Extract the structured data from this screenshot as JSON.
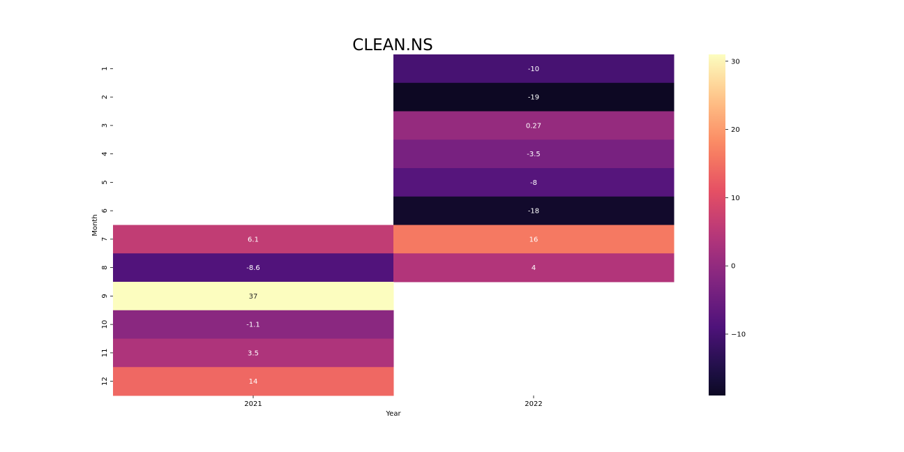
{
  "chart_data": {
    "type": "heatmap",
    "title": "CLEAN.NS",
    "xlabel": "Year",
    "ylabel": "Month",
    "x_categories": [
      "2021",
      "2022"
    ],
    "y_categories": [
      "1",
      "2",
      "3",
      "4",
      "5",
      "6",
      "7",
      "8",
      "9",
      "10",
      "11",
      "12"
    ],
    "values": [
      [
        null,
        -10
      ],
      [
        null,
        -19
      ],
      [
        null,
        0.27
      ],
      [
        null,
        -3.5
      ],
      [
        null,
        -8
      ],
      [
        null,
        -18
      ],
      [
        6.1,
        16
      ],
      [
        -8.6,
        4
      ],
      [
        37,
        null
      ],
      [
        -1.1,
        null
      ],
      [
        3.5,
        null
      ],
      [
        14,
        null
      ]
    ],
    "cell_labels": [
      [
        null,
        "-10"
      ],
      [
        null,
        "-19"
      ],
      [
        null,
        "0.27"
      ],
      [
        null,
        "-3.5"
      ],
      [
        null,
        "-8"
      ],
      [
        null,
        "-18"
      ],
      [
        "6.1",
        "16"
      ],
      [
        "-8.6",
        "4"
      ],
      [
        "37",
        null
      ],
      [
        "-1.1",
        null
      ],
      [
        "3.5",
        null
      ],
      [
        "14",
        null
      ]
    ],
    "colorscale": "magma",
    "color_range": [
      -19,
      31
    ],
    "colorbar_ticks": [
      30,
      20,
      10,
      0,
      -10
    ],
    "colorbar_tick_labels": [
      "30",
      "20",
      "10",
      "0",
      "−10"
    ]
  }
}
